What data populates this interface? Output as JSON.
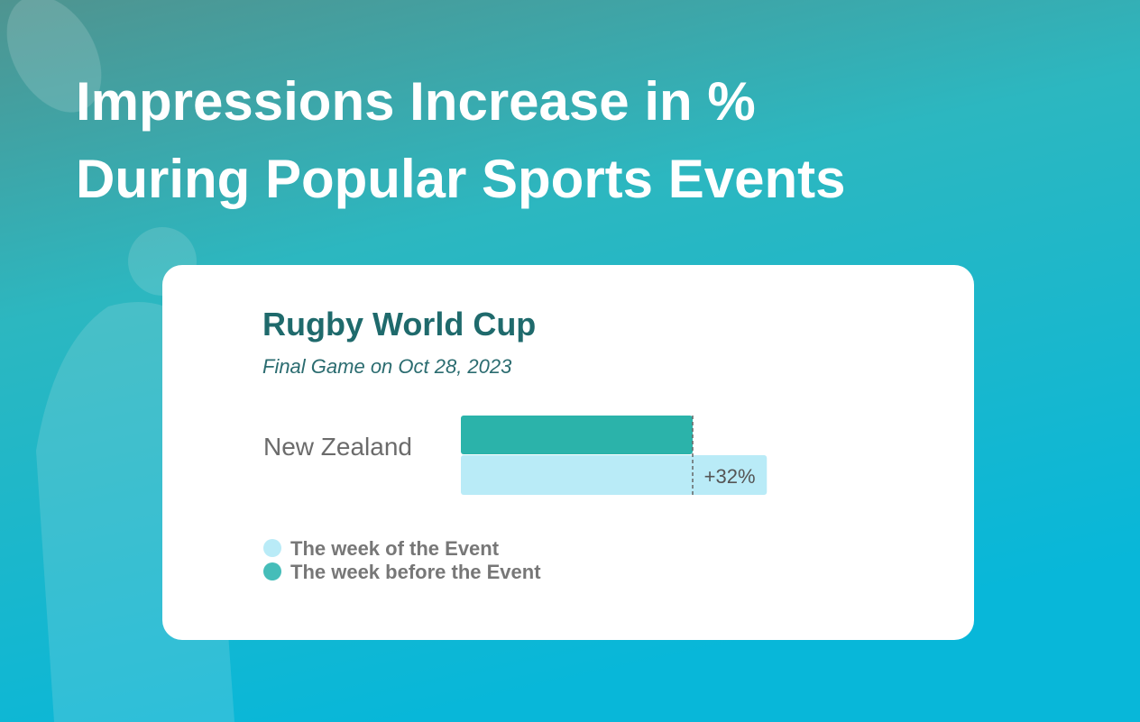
{
  "header": {
    "title_lines": [
      "Impressions Increase in %",
      "During Popular Sports Events"
    ]
  },
  "chart_data": {
    "type": "bar",
    "orientation": "horizontal",
    "title": "Rugby World Cup",
    "subtitle": "Final Game on Oct 28, 2023",
    "categories": [
      "New Zealand"
    ],
    "series": [
      {
        "name": "The week of the Event",
        "color": "#b9ebf7",
        "values": [
          32
        ],
        "value_labels": [
          "+32%"
        ]
      },
      {
        "name": "The week before the Event",
        "color": "#2bb3aa",
        "values": [
          100
        ]
      }
    ]
  }
}
